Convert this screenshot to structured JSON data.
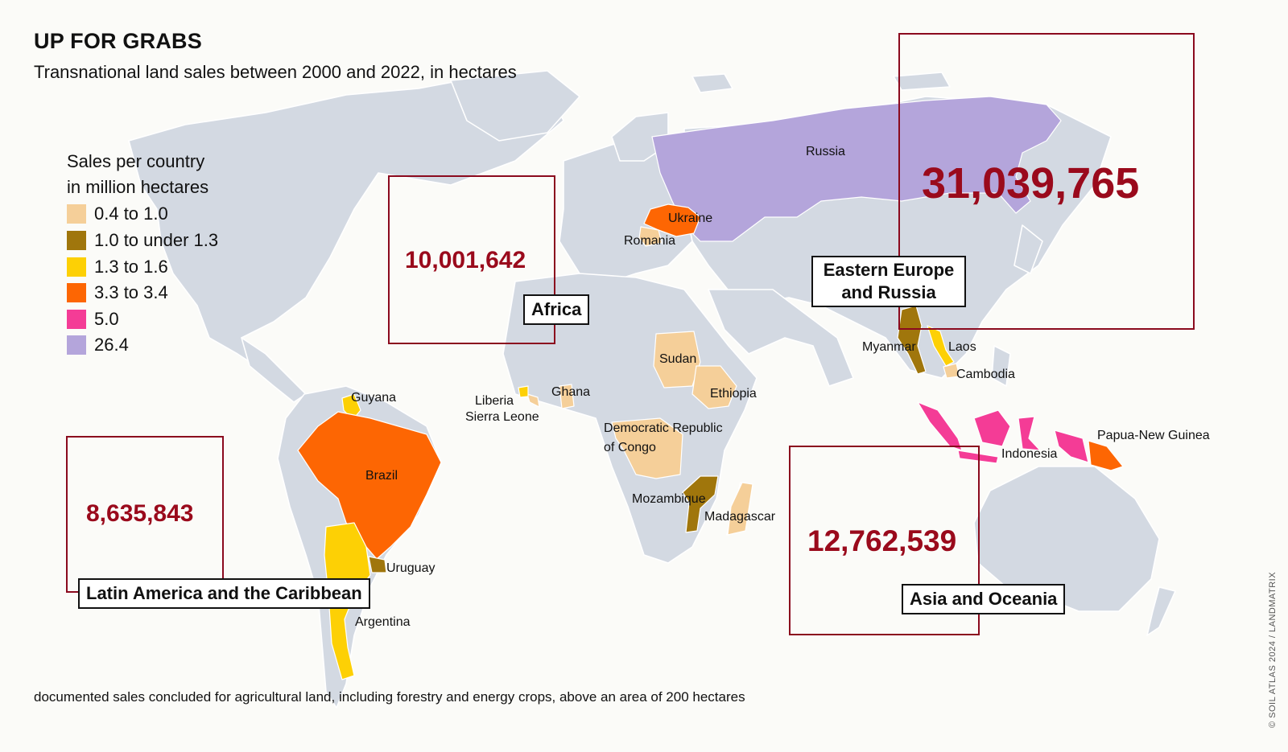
{
  "title": "UP FOR GRABS",
  "subtitle": "Transnational land sales between 2000 and 2022, in hectares",
  "legend": {
    "title_line1": "Sales per country",
    "title_line2": "in million hectares",
    "items": [
      {
        "label": "0.4 to 1.0",
        "color": "#f5cf99"
      },
      {
        "label": "1.0 to under 1.3",
        "color": "#a0760c"
      },
      {
        "label": "1.3 to 1.6",
        "color": "#fdd005"
      },
      {
        "label": "3.3 to 3.4",
        "color": "#fd6603"
      },
      {
        "label": "5.0",
        "color": "#f43c96"
      },
      {
        "label": "26.4",
        "color": "#b4a5db"
      }
    ]
  },
  "regions": {
    "africa": {
      "total": "10,001,642",
      "label": "Africa"
    },
    "eastern_europe_russia": {
      "total": "31,039,765",
      "label_line1": "Eastern Europe",
      "label_line2": "and Russia"
    },
    "latin_america": {
      "total": "8,635,843",
      "label": "Latin America and the Caribbean"
    },
    "asia_oceania": {
      "total": "12,762,539",
      "label": "Asia and Oceania"
    }
  },
  "countries": {
    "russia": "Russia",
    "ukraine": "Ukraine",
    "romania": "Romania",
    "myanmar": "Myanmar",
    "laos": "Laos",
    "cambodia": "Cambodia",
    "indonesia": "Indonesia",
    "papua": "Papua-New Guinea",
    "sudan": "Sudan",
    "ethiopia": "Ethiopia",
    "ghana": "Ghana",
    "liberia": "Liberia",
    "sierra_leone": "Sierra Leone",
    "drc_line1": "Democratic Republic",
    "drc_line2": "of Congo",
    "mozambique": "Mozambique",
    "madagascar": "Madagascar",
    "guyana": "Guyana",
    "brazil": "Brazil",
    "uruguay": "Uruguay",
    "argentina": "Argentina"
  },
  "colors": {
    "land": "#d3d9e2",
    "border": "#ffffff",
    "box": "#8b0a1e",
    "total_text": "#9a0a1c"
  },
  "footer": "documented sales concluded for agricultural land, including forestry and energy crops, above an area of 200 hectares",
  "credit": "© SOIL ATLAS 2024 / LANDMATRIX"
}
